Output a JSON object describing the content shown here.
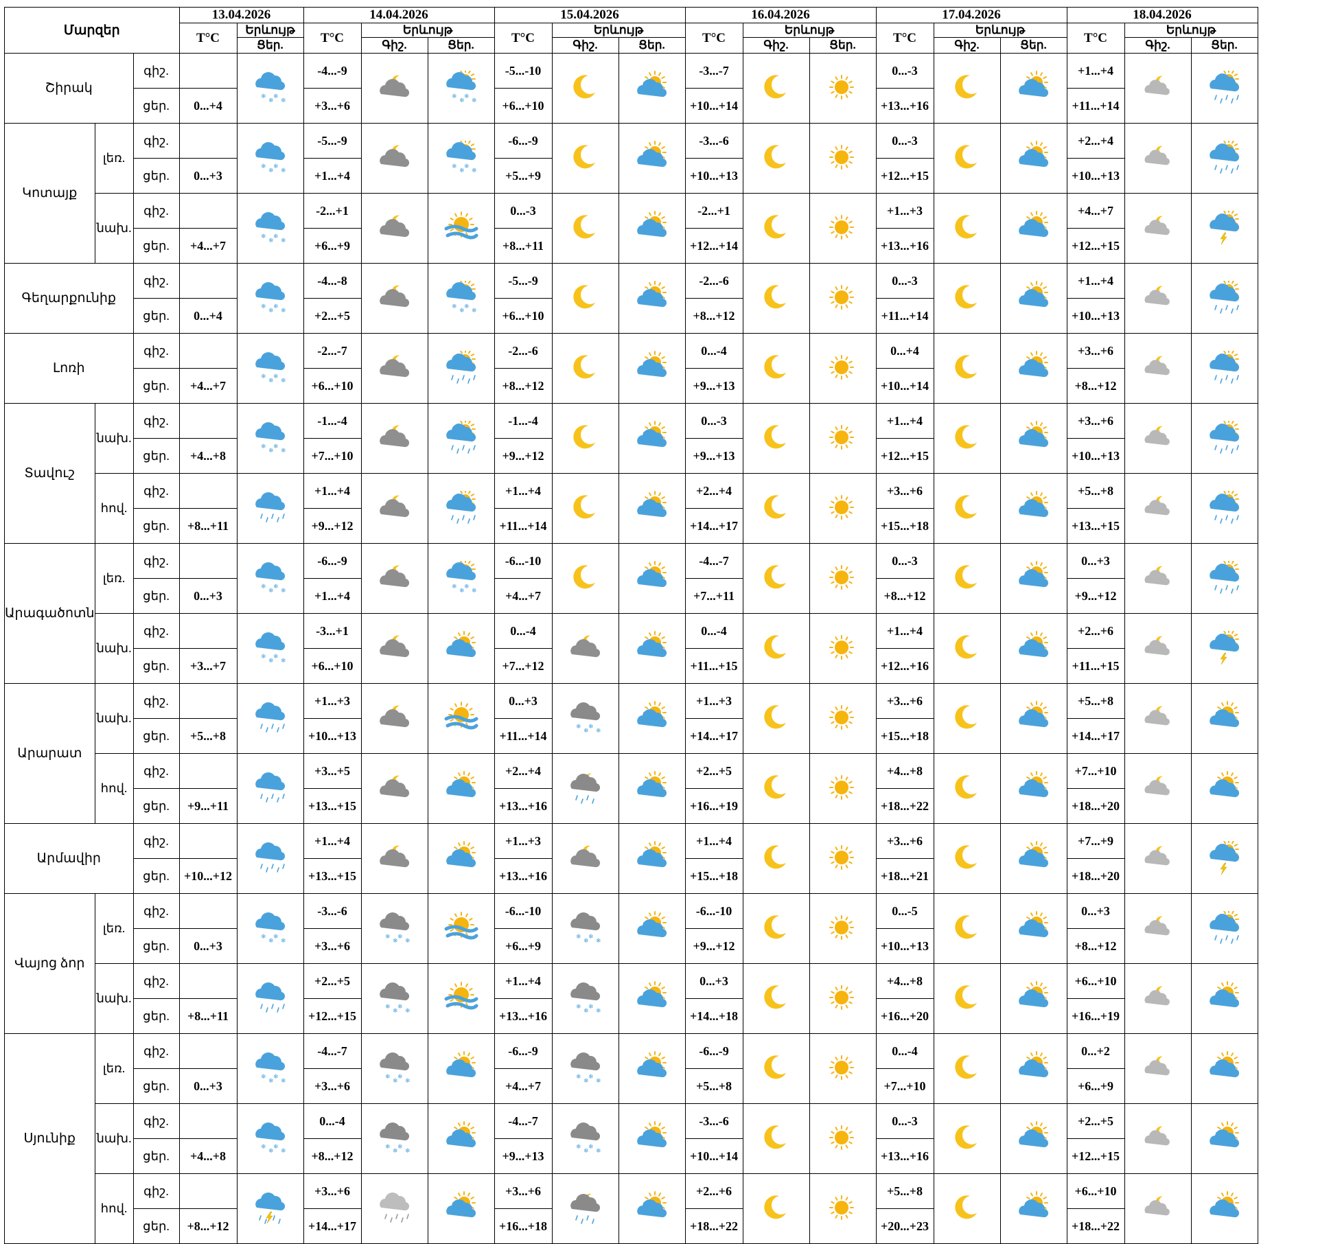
{
  "header": {
    "region_label": "Մարզեր",
    "temp_label": "T°C",
    "phenomenon_label": "Երևույթ",
    "night_label": "Գիշ.",
    "day_label": "Ցեր.",
    "dates": [
      "13.04.2026",
      "14.04.2026",
      "15.04.2026",
      "16.04.2026",
      "17.04.2026",
      "18.04.2026"
    ]
  },
  "regions": [
    {
      "name": "Շիրակ",
      "subs": [
        {
          "sub": "",
          "rows": [
            {
              "label": "գիշ.",
              "temps": [
                "",
                "-4...-9",
                "-5...-10",
                "-3...-7",
                "0...-3",
                "+1...+4"
              ]
            },
            {
              "label": "ցեր.",
              "temps": [
                "0...+4",
                "+3...+6",
                "+6...+10",
                "+10...+14",
                "+13...+16",
                "+11...+14"
              ]
            }
          ],
          "icons": [
            "snow-cloud",
            "moon-cloud",
            "snow-sun-cloud",
            "moon",
            "sun-cloud",
            "moon",
            "sun",
            "moon",
            "sun-cloud",
            "moon-cloud-gray",
            "rain-sun-cloud"
          ]
        }
      ]
    },
    {
      "name": "Կոտայք",
      "subs": [
        {
          "sub": "լեռ.",
          "rows": [
            {
              "label": "գիշ.",
              "temps": [
                "",
                "-5...-9",
                "-6...-9",
                "-3...-6",
                "0...-3",
                "+2...+4"
              ]
            },
            {
              "label": "ցեր.",
              "temps": [
                "0...+3",
                "+1...+4",
                "+5...+9",
                "+10...+13",
                "+12...+15",
                "+10...+13"
              ]
            }
          ],
          "icons": [
            "snow-cloud",
            "moon-cloud",
            "snow-sun-cloud",
            "moon",
            "sun-cloud",
            "moon",
            "sun",
            "moon",
            "sun-cloud",
            "moon-cloud-gray",
            "rain-sun-cloud"
          ]
        },
        {
          "sub": "նախ.",
          "rows": [
            {
              "label": "գիշ.",
              "temps": [
                "",
                "-2...+1",
                "0...-3",
                "-2...+1",
                "+1...+3",
                "+4...+7"
              ]
            },
            {
              "label": "ցեր.",
              "temps": [
                "+4...+7",
                "+6...+9",
                "+8...+11",
                "+12...+14",
                "+13...+16",
                "+12...+15"
              ]
            }
          ],
          "icons": [
            "snow-cloud",
            "moon-cloud",
            "sun-fog",
            "moon",
            "sun-cloud",
            "moon",
            "sun",
            "moon",
            "sun-cloud",
            "moon-cloud-gray",
            "storm-sun-cloud"
          ]
        }
      ]
    },
    {
      "name": "Գեղարքունիք",
      "subs": [
        {
          "sub": "",
          "rows": [
            {
              "label": "գիշ.",
              "temps": [
                "",
                "-4...-8",
                "-5...-9",
                "-2...-6",
                "0...-3",
                "+1...+4"
              ]
            },
            {
              "label": "ցեր.",
              "temps": [
                "0...+4",
                "+2...+5",
                "+6...+10",
                "+8...+12",
                "+11...+14",
                "+10...+13"
              ]
            }
          ],
          "icons": [
            "snow-cloud",
            "moon-cloud",
            "snow-sun-cloud",
            "moon",
            "sun-cloud",
            "moon",
            "sun",
            "moon",
            "sun-cloud",
            "moon-cloud-gray",
            "rain-sun-cloud"
          ]
        }
      ]
    },
    {
      "name": "Լոռի",
      "subs": [
        {
          "sub": "",
          "rows": [
            {
              "label": "գիշ.",
              "temps": [
                "",
                "-2...-7",
                "-2...-6",
                "0...-4",
                "0...+4",
                "+3...+6"
              ]
            },
            {
              "label": "ցեր.",
              "temps": [
                "+4...+7",
                "+6...+10",
                "+8...+12",
                "+9...+13",
                "+10...+14",
                "+8...+12"
              ]
            }
          ],
          "icons": [
            "snow-cloud",
            "moon-cloud",
            "rain-sun-cloud",
            "moon",
            "sun-cloud",
            "moon",
            "sun",
            "moon",
            "sun-cloud",
            "moon-cloud-gray",
            "rain-sun-cloud"
          ]
        }
      ]
    },
    {
      "name": "Տավուշ",
      "subs": [
        {
          "sub": "նախ.",
          "rows": [
            {
              "label": "գիշ.",
              "temps": [
                "",
                "-1...-4",
                "-1...-4",
                "0...-3",
                "+1...+4",
                "+3...+6"
              ]
            },
            {
              "label": "ցեր.",
              "temps": [
                "+4...+8",
                "+7...+10",
                "+9...+12",
                "+9...+13",
                "+12...+15",
                "+10...+13"
              ]
            }
          ],
          "icons": [
            "snow-cloud",
            "moon-cloud",
            "rain-sun-cloud",
            "moon",
            "sun-cloud",
            "moon",
            "sun",
            "moon",
            "sun-cloud",
            "moon-cloud-gray",
            "rain-sun-cloud"
          ]
        },
        {
          "sub": "հով.",
          "rows": [
            {
              "label": "գիշ.",
              "temps": [
                "",
                "+1...+4",
                "+1...+4",
                "+2...+4",
                "+3...+6",
                "+5...+8"
              ]
            },
            {
              "label": "ցեր.",
              "temps": [
                "+8...+11",
                "+9...+12",
                "+11...+14",
                "+14...+17",
                "+15...+18",
                "+13...+15"
              ]
            }
          ],
          "icons": [
            "rain-cloud",
            "moon-cloud",
            "rain-sun-cloud",
            "moon",
            "sun-cloud",
            "moon",
            "sun",
            "moon",
            "sun-cloud",
            "moon-cloud-gray",
            "rain-sun-cloud"
          ]
        }
      ]
    },
    {
      "name": "Արագածոտն",
      "subs": [
        {
          "sub": "լեռ.",
          "rows": [
            {
              "label": "գիշ.",
              "temps": [
                "",
                "-6...-9",
                "-6...-10",
                "-4...-7",
                "0...-3",
                "0...+3"
              ]
            },
            {
              "label": "ցեր.",
              "temps": [
                "0...+3",
                "+1...+4",
                "+4...+7",
                "+7...+11",
                "+8...+12",
                "+9...+12"
              ]
            }
          ],
          "icons": [
            "snow-cloud",
            "moon-cloud",
            "snow-sun-cloud",
            "moon",
            "sun-cloud",
            "moon",
            "sun",
            "moon",
            "sun-cloud",
            "moon-cloud-gray",
            "rain-sun-cloud"
          ]
        },
        {
          "sub": "նախ.",
          "rows": [
            {
              "label": "գիշ.",
              "temps": [
                "",
                "-3...+1",
                "0...-4",
                "0...-4",
                "+1...+4",
                "+2...+6"
              ]
            },
            {
              "label": "ցեր.",
              "temps": [
                "+3...+7",
                "+6...+10",
                "+7...+12",
                "+11...+15",
                "+12...+16",
                "+11...+15"
              ]
            }
          ],
          "icons": [
            "snow-cloud",
            "moon-cloud",
            "sun-cloud",
            "moon-cloud",
            "sun-cloud",
            "moon",
            "sun",
            "moon",
            "sun-cloud",
            "moon-cloud-gray",
            "storm-sun-cloud"
          ]
        }
      ]
    },
    {
      "name": "Արարատ",
      "subs": [
        {
          "sub": "նախ.",
          "rows": [
            {
              "label": "գիշ.",
              "temps": [
                "",
                "+1...+3",
                "0...+3",
                "+1...+3",
                "+3...+6",
                "+5...+8"
              ]
            },
            {
              "label": "ցեր.",
              "temps": [
                "+5...+8",
                "+10...+13",
                "+11...+14",
                "+14...+17",
                "+15...+18",
                "+14...+17"
              ]
            }
          ],
          "icons": [
            "rain-cloud",
            "moon-cloud",
            "sun-fog",
            "snow-gray-cloud",
            "sun-cloud",
            "moon",
            "sun",
            "moon",
            "sun-cloud",
            "moon-cloud-gray",
            "sun-cloud"
          ]
        },
        {
          "sub": "հով.",
          "rows": [
            {
              "label": "գիշ.",
              "temps": [
                "",
                "+3...+5",
                "+2...+4",
                "+2...+5",
                "+4...+8",
                "+7...+10"
              ]
            },
            {
              "label": "ցեր.",
              "temps": [
                "+9...+11",
                "+13...+15",
                "+13...+16",
                "+16...+19",
                "+18...+22",
                "+18...+20"
              ]
            }
          ],
          "icons": [
            "rain-cloud",
            "moon-cloud",
            "sun-cloud",
            "rain-moon-cloud",
            "sun-cloud",
            "moon",
            "sun",
            "moon",
            "sun-cloud",
            "moon-cloud-gray",
            "sun-cloud"
          ]
        }
      ]
    },
    {
      "name": "Արմավիր",
      "subs": [
        {
          "sub": "",
          "rows": [
            {
              "label": "գիշ.",
              "temps": [
                "",
                "+1...+4",
                "+1...+3",
                "+1...+4",
                "+3...+6",
                "+7...+9"
              ]
            },
            {
              "label": "ցեր.",
              "temps": [
                "+10...+12",
                "+13...+15",
                "+13...+16",
                "+15...+18",
                "+18...+21",
                "+18...+20"
              ]
            }
          ],
          "icons": [
            "rain-cloud",
            "moon-cloud",
            "sun-cloud",
            "moon-cloud",
            "sun-cloud",
            "moon",
            "sun",
            "moon",
            "sun-cloud",
            "moon-cloud-gray",
            "storm-sun-cloud"
          ]
        }
      ]
    },
    {
      "name": "Վայոց ձոր",
      "subs": [
        {
          "sub": "լեռ.",
          "rows": [
            {
              "label": "գիշ.",
              "temps": [
                "",
                "-3...-6",
                "-6...-10",
                "-6...-10",
                "0...-5",
                "0...+3"
              ]
            },
            {
              "label": "ցեր.",
              "temps": [
                "0...+3",
                "+3...+6",
                "+6...+9",
                "+9...+12",
                "+10...+13",
                "+8...+12"
              ]
            }
          ],
          "icons": [
            "snow-cloud",
            "snow-gray-cloud",
            "sun-fog",
            "snow-gray-cloud",
            "sun-cloud",
            "moon",
            "sun",
            "moon",
            "sun-cloud",
            "moon-cloud-gray",
            "rain-sun-cloud"
          ]
        },
        {
          "sub": "նախ.",
          "rows": [
            {
              "label": "գիշ.",
              "temps": [
                "",
                "+2...+5",
                "+1...+4",
                "0...+3",
                "+4...+8",
                "+6...+10"
              ]
            },
            {
              "label": "ցեր.",
              "temps": [
                "+8...+11",
                "+12...+15",
                "+13...+16",
                "+14...+18",
                "+16...+20",
                "+16...+19"
              ]
            }
          ],
          "icons": [
            "rain-cloud",
            "snow-gray-cloud",
            "sun-fog",
            "snow-gray-cloud",
            "sun-cloud",
            "moon",
            "sun",
            "moon",
            "sun-cloud",
            "moon-cloud-gray",
            "sun-cloud"
          ]
        }
      ]
    },
    {
      "name": "Սյունիք",
      "subs": [
        {
          "sub": "լեռ.",
          "rows": [
            {
              "label": "գիշ.",
              "temps": [
                "",
                "-4...-7",
                "-6...-9",
                "-6...-9",
                "0...-4",
                "0...+2"
              ]
            },
            {
              "label": "ցեր.",
              "temps": [
                "0...+3",
                "+3...+6",
                "+4...+7",
                "+5...+8",
                "+7...+10",
                "+6...+9"
              ]
            }
          ],
          "icons": [
            "snow-cloud",
            "snow-gray-cloud",
            "sun-cloud",
            "snow-gray-cloud",
            "sun-cloud",
            "moon",
            "sun",
            "moon",
            "sun-cloud",
            "moon-cloud-gray",
            "sun-cloud"
          ]
        },
        {
          "sub": "նախ.",
          "rows": [
            {
              "label": "գիշ.",
              "temps": [
                "",
                "0...-4",
                "-4...-7",
                "-3...-6",
                "0...-3",
                "+2...+5"
              ]
            },
            {
              "label": "ցեր.",
              "temps": [
                "+4...+8",
                "+8...+12",
                "+9...+13",
                "+10...+14",
                "+13...+16",
                "+12...+15"
              ]
            }
          ],
          "icons": [
            "snow-cloud",
            "snow-gray-cloud",
            "sun-cloud",
            "snow-gray-cloud",
            "sun-cloud",
            "moon",
            "sun",
            "moon",
            "sun-cloud",
            "moon-cloud-gray",
            "sun-cloud"
          ]
        },
        {
          "sub": "հով.",
          "rows": [
            {
              "label": "գիշ.",
              "temps": [
                "",
                "+3...+6",
                "+3...+6",
                "+2...+6",
                "+5...+8",
                "+6...+10"
              ]
            },
            {
              "label": "ցեր.",
              "temps": [
                "+8...+12",
                "+14...+17",
                "+16...+18",
                "+18...+22",
                "+20...+23",
                "+18...+22"
              ]
            }
          ],
          "icons": [
            "storm-cloud",
            "rain-gray-cloud",
            "sun-cloud",
            "rain-moon-cloud",
            "sun-cloud",
            "moon",
            "sun",
            "moon",
            "sun-cloud",
            "moon-cloud-gray",
            "sun-cloud"
          ]
        }
      ]
    }
  ]
}
